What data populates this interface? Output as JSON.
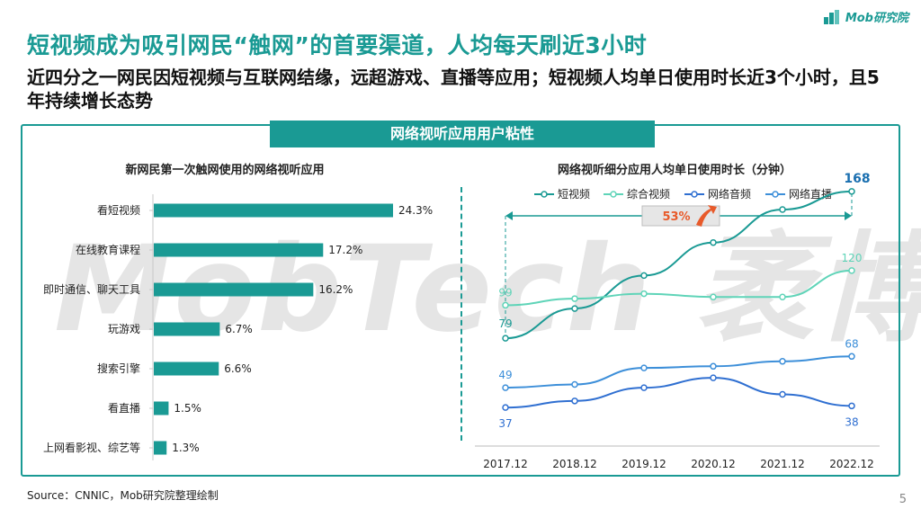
{
  "brand": {
    "logo_text": "Mob研究院"
  },
  "title": "短视频成为吸引网民“触网”的首要渠道，人均每天刷近3小时",
  "subtitle": "近四分之一网民因短视频与互联网结缘，远超游戏、直播等应用；短视频人均单日使用时长近3个小时，且5年持续增长态势",
  "panel_header": "网络视听应用用户粘性",
  "watermark": "MobTech 袤博",
  "source": "Source：CNNIC，Mob研究院整理绘制",
  "page_number": "5",
  "colors": {
    "teal_dark": "#1a9a94",
    "teal_light": "#5fd4b8",
    "blue": "#2f6fd1",
    "blue_light": "#3d8fd9",
    "accent_orange": "#e85a2a"
  },
  "chart_data": [
    {
      "type": "bar",
      "orientation": "horizontal",
      "title": "新网民第一次触网使用的网络视听应用",
      "categories": [
        "看短视频",
        "在线教育课程",
        "即时通信、聊天工具",
        "玩游戏",
        "搜索引擎",
        "看直播",
        "上网看影视、综艺等"
      ],
      "values": [
        24.3,
        17.2,
        16.2,
        6.7,
        6.6,
        1.5,
        1.3
      ],
      "value_labels": [
        "24.3%",
        "17.2%",
        "16.2%",
        "6.7%",
        "6.6%",
        "1.5%",
        "1.3%"
      ],
      "unit": "%",
      "xlim": [
        0,
        24.3
      ],
      "color": "#1a9a94"
    },
    {
      "type": "line",
      "title": "网络视听细分应用人均单日使用时长（分钟）",
      "x": [
        "2017.12",
        "2018.12",
        "2019.12",
        "2020.12",
        "2021.12",
        "2022.12"
      ],
      "series": [
        {
          "name": "短视频",
          "values": [
            79,
            97,
            117,
            137,
            157,
            168
          ],
          "color": "#1a9a94",
          "labels": [
            "79",
            "",
            "",
            "",
            "",
            "168"
          ]
        },
        {
          "name": "综合视频",
          "values": [
            99,
            103,
            106,
            104,
            104,
            120
          ],
          "color": "#5fd4b8",
          "labels": [
            "99",
            "",
            "",
            "",
            "",
            "120"
          ]
        },
        {
          "name": "网络音频",
          "values": [
            37,
            41,
            49,
            55,
            45,
            38
          ],
          "color": "#2f6fd1",
          "labels": [
            "37",
            "",
            "",
            "",
            "",
            "38"
          ]
        },
        {
          "name": "网络直播",
          "values": [
            49,
            51,
            61,
            62,
            65,
            68
          ],
          "color": "#3d8fd9",
          "labels": [
            "49",
            "",
            "",
            "",
            "",
            "68"
          ]
        }
      ],
      "ylim": [
        30,
        175
      ],
      "legend": "top",
      "grid": false,
      "annotation": {
        "text": "53%",
        "between": [
          "2017.12",
          "2022.12"
        ]
      }
    }
  ]
}
